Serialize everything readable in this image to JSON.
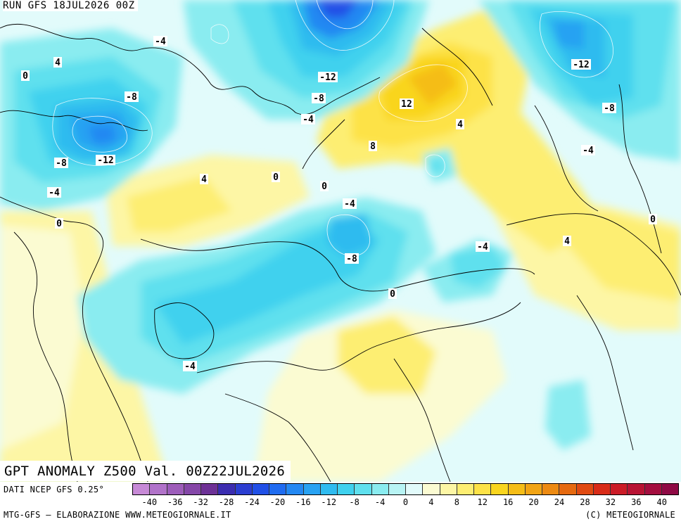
{
  "header": {
    "run_label": "RUN GFS 18JUL2026 00Z"
  },
  "title": "GPT ANOMALY Z500 Val. 00Z22JUL2026",
  "footer": {
    "source": "DATI NCEP GFS 0.25°",
    "credits_left": "MTG-GFS – ELABORAZIONE WWW.METEOGIORNALE.IT",
    "credits_right": "(C) METEOGIORNALE"
  },
  "legend": {
    "colors": [
      "#c78ad6",
      "#b173c9",
      "#9c5dba",
      "#8447a8",
      "#6c3196",
      "#3a2db0",
      "#2a3ed1",
      "#2050e6",
      "#1f6cf0",
      "#2388f2",
      "#28a2f2",
      "#2fbbef",
      "#3fd1ee",
      "#5fe0ee",
      "#8aecf0",
      "#b8f4f4",
      "#e2fbfb",
      "#fbfbd2",
      "#fdf6a5",
      "#fdee72",
      "#fde247",
      "#f9d51e",
      "#f5bd17",
      "#f1a414",
      "#ec8a12",
      "#e66a10",
      "#e04a12",
      "#d82c18",
      "#cb1c27",
      "#b81434",
      "#a40e3f",
      "#8f0a45"
    ],
    "tick_labels": [
      "-40",
      "-36",
      "-32",
      "-28",
      "-24",
      "-20",
      "-16",
      "-12",
      "-8",
      "-4",
      "0",
      "4",
      "8",
      "12",
      "16",
      "20",
      "24",
      "28",
      "32",
      "36",
      "40"
    ]
  },
  "contour_labels": [
    {
      "text": "-4"
    },
    {
      "text": "4"
    },
    {
      "text": "0"
    },
    {
      "text": "-8"
    },
    {
      "text": "-12"
    },
    {
      "text": "-8"
    },
    {
      "text": "-4"
    },
    {
      "text": "0"
    },
    {
      "text": "-12"
    },
    {
      "text": "-8"
    },
    {
      "text": "-4"
    },
    {
      "text": "12"
    },
    {
      "text": "8"
    },
    {
      "text": "4"
    },
    {
      "text": "-12"
    },
    {
      "text": "-8"
    },
    {
      "text": "-4"
    },
    {
      "text": "4"
    },
    {
      "text": "0"
    },
    {
      "text": "0"
    },
    {
      "text": "-4"
    },
    {
      "text": "-8"
    },
    {
      "text": "-4"
    },
    {
      "text": "4"
    },
    {
      "text": "0"
    },
    {
      "text": "0"
    },
    {
      "text": "-4"
    }
  ]
}
